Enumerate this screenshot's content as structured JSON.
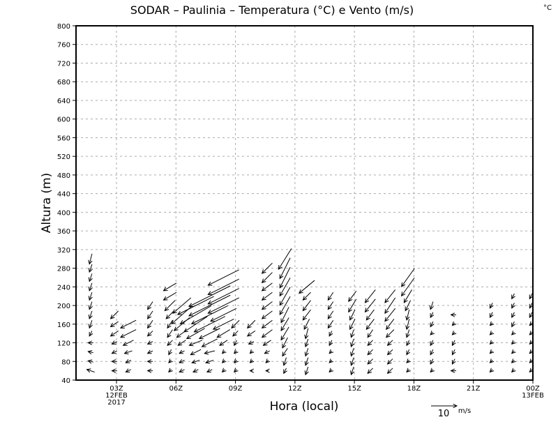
{
  "chart_data": {
    "type": "vector",
    "title": "SODAR – Paulinia – Temperatura (°C) e Vento (m/s)",
    "corner_label": "°C",
    "xlabel": "Hora (local)",
    "ylabel": "Altura (m)",
    "ylim": [
      40,
      800
    ],
    "yticks": [
      40,
      80,
      120,
      160,
      200,
      240,
      280,
      320,
      360,
      400,
      440,
      480,
      520,
      560,
      600,
      640,
      680,
      720,
      760,
      800
    ],
    "xlim_hours": [
      0.96,
      24
    ],
    "xticks": [
      {
        "hour": 3,
        "label": "03Z",
        "sub1": "12FEB",
        "sub2": "2017"
      },
      {
        "hour": 6,
        "label": "06Z"
      },
      {
        "hour": 9,
        "label": "09Z"
      },
      {
        "hour": 12,
        "label": "12Z"
      },
      {
        "hour": 15,
        "label": "15Z"
      },
      {
        "hour": 18,
        "label": "18Z"
      },
      {
        "hour": 21,
        "label": "21Z"
      },
      {
        "hour": 24,
        "label": "00Z",
        "sub1": "13FEB"
      }
    ],
    "grid": true,
    "reference_vector": {
      "speed": 10,
      "value_label": "10",
      "unit_label": "m/s"
    },
    "level_start": 60,
    "level_step": 20,
    "columns": [
      {
        "hour": 1.7,
        "u": [
          -3,
          -2,
          -2,
          -2,
          -1,
          -1,
          -1,
          -1,
          -1,
          -1,
          -1,
          -1,
          -1
        ],
        "v": [
          1,
          0.5,
          0.5,
          0,
          -2,
          -3,
          -3,
          -3,
          -3,
          -3,
          -3,
          -3,
          -4
        ]
      },
      {
        "hour": 2.9,
        "u": [
          -2,
          -2,
          -2,
          -2,
          -3,
          -3,
          -3
        ],
        "v": [
          0,
          0,
          -1,
          -1,
          -2,
          -2,
          -3
        ]
      },
      {
        "hour": 3.6,
        "u": [
          -2,
          -2,
          -3,
          -4,
          -6,
          -6
        ],
        "v": [
          -1,
          -1,
          -1,
          -2,
          -3,
          -3
        ]
      },
      {
        "hour": 4.7,
        "u": [
          -2,
          -2,
          -2,
          -2,
          -2,
          -2,
          -2,
          -2
        ],
        "v": [
          0,
          0,
          -1,
          -1,
          -2,
          -3,
          -3,
          -3
        ]
      },
      {
        "hour": 5.7,
        "u": [
          -1,
          -1,
          -1,
          -2,
          -2,
          -2,
          -3,
          -4,
          -5,
          -5
        ],
        "v": [
          -1,
          -1,
          -2,
          -2,
          -3,
          -3,
          -3,
          -4,
          -3,
          -3
        ]
      },
      {
        "hour": 6.3,
        "u": [
          -2,
          -2,
          -2,
          -3,
          -4,
          -6,
          -8,
          -7
        ],
        "v": [
          -1,
          -1,
          -1,
          -2,
          -3,
          -5,
          -7,
          -6
        ]
      },
      {
        "hour": 7.0,
        "u": [
          -2,
          -3,
          -4,
          -5,
          -7,
          -9,
          -12,
          -14
        ],
        "v": [
          -1,
          -1,
          -2,
          -2,
          -4,
          -6,
          -7,
          -7
        ]
      },
      {
        "hour": 7.7,
        "u": [
          -2,
          -3,
          -4,
          -6,
          -8,
          -12,
          -14,
          -16,
          -16
        ],
        "v": [
          -1,
          -1,
          -1,
          -3,
          -4,
          -6,
          -7,
          -8,
          -8
        ]
      },
      {
        "hour": 8.4,
        "u": [
          -1,
          -1,
          -1,
          -3,
          -5,
          -8,
          -10,
          -12,
          -12,
          -12,
          -12
        ],
        "v": [
          -1,
          -1,
          -1,
          -2,
          -3,
          -4,
          -5,
          -6,
          -6,
          -6,
          -6
        ]
      },
      {
        "hour": 9.0,
        "u": [
          -1,
          -1,
          -1,
          -1,
          -2,
          -3
        ],
        "v": [
          -1,
          -1,
          -1,
          -2,
          -2,
          -3
        ]
      },
      {
        "hour": 9.8,
        "u": [
          -1,
          -1,
          -1,
          -2,
          -3,
          -3
        ],
        "v": [
          0,
          -1,
          -1,
          -1,
          -2,
          -3
        ]
      },
      {
        "hour": 10.6,
        "u": [
          -1,
          -1,
          -2,
          -3,
          -4,
          -4,
          -4,
          -4,
          -4,
          -4,
          -4,
          -4
        ],
        "v": [
          0,
          -1,
          -1,
          -2,
          -3,
          -3,
          -3,
          -3,
          -3,
          -3,
          -4,
          -4
        ]
      },
      {
        "hour": 11.5,
        "u": [
          -1,
          -1,
          -2,
          -2,
          -3,
          -3,
          -3,
          -4,
          -4,
          -4,
          -4,
          -4,
          -5
        ],
        "v": [
          -2,
          -3,
          -3,
          -4,
          -5,
          -5,
          -6,
          -7,
          -7,
          -7,
          -8,
          -8,
          -8
        ]
      },
      {
        "hour": 12.6,
        "u": [
          -1,
          -1,
          -1,
          -1,
          -1,
          -2,
          -3,
          -3,
          -3,
          -6
        ],
        "v": [
          -3,
          -3,
          -3,
          -3,
          -4,
          -4,
          -4,
          -4,
          -3,
          -5
        ]
      },
      {
        "hour": 13.8,
        "u": [
          -1,
          -1,
          -1,
          -1,
          -1,
          -2,
          -2,
          -2,
          -2
        ],
        "v": [
          -1,
          -1,
          -1,
          -2,
          -2,
          -3,
          -3,
          -3,
          -3
        ]
      },
      {
        "hour": 14.9,
        "u": [
          -1,
          -1,
          -1,
          -1,
          -1,
          -2,
          -2,
          -3,
          -3
        ],
        "v": [
          -3,
          -3,
          -3,
          -3,
          -3,
          -4,
          -4,
          -5,
          -4
        ]
      },
      {
        "hour": 15.8,
        "u": [
          -2,
          -2,
          -2,
          -2,
          -2,
          -3,
          -3,
          -4,
          -4
        ],
        "v": [
          -2,
          -2,
          -2,
          -2,
          -3,
          -4,
          -4,
          -5,
          -5
        ]
      },
      {
        "hour": 16.8,
        "u": [
          -2,
          -2,
          -2,
          -2,
          -3,
          -3,
          -4,
          -4,
          -4
        ],
        "v": [
          -2,
          -2,
          -2,
          -2,
          -3,
          -4,
          -5,
          -6,
          -5
        ]
      },
      {
        "hour": 17.7,
        "u": [
          -1,
          -1,
          -1,
          -1,
          -1,
          -1,
          -1,
          -2,
          -3,
          -5,
          -5
        ],
        "v": [
          -1,
          -1,
          -2,
          -2,
          -3,
          -4,
          -4,
          -4,
          -5,
          -7,
          -7
        ]
      },
      {
        "hour": 18.9,
        "u": [
          -1,
          -1,
          -1,
          -1,
          -1,
          -1,
          -1,
          -1
        ],
        "v": [
          -1,
          -2,
          -2,
          -2,
          -1,
          -2,
          -2,
          -3
        ]
      },
      {
        "hour": 20.0,
        "u": [
          -2,
          -1,
          -1,
          -1,
          -1,
          -1,
          -2
        ],
        "v": [
          0,
          -2,
          -2,
          -2,
          -1,
          -1,
          0
        ]
      },
      {
        "hour": 21.9,
        "u": [
          -1,
          -1,
          -1,
          -1,
          -1,
          -1,
          -1,
          -1
        ],
        "v": [
          -1,
          -1,
          -1,
          -1,
          -1,
          -1,
          -2,
          -2
        ]
      },
      {
        "hour": 23.0,
        "u": [
          -1,
          -1,
          -1,
          -1,
          -1,
          -1,
          -1,
          -1,
          -1
        ],
        "v": [
          -1,
          -1,
          -1,
          -1,
          -1,
          -2,
          -2,
          -2,
          -2
        ]
      },
      {
        "hour": 23.9,
        "u": [
          -1,
          -1,
          -1,
          -1,
          -1,
          -1,
          -1,
          -1,
          -1
        ],
        "v": [
          -1,
          -1,
          -1,
          -1,
          -1,
          -1,
          -2,
          -2,
          -2
        ]
      }
    ]
  }
}
